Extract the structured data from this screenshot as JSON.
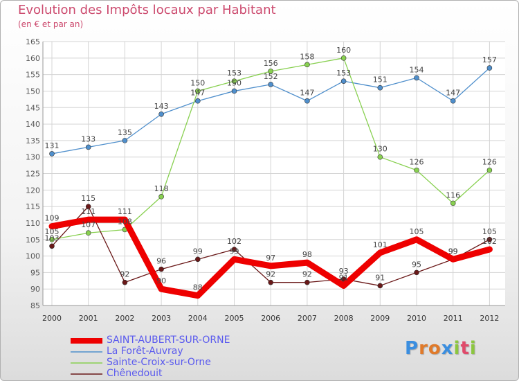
{
  "header": {
    "title": "Evolution des Impôts locaux par Habitant",
    "subtitle": "(en € et par an)"
  },
  "logo": {
    "text": "Proxiti",
    "letters": [
      "P",
      "r",
      "o",
      "x",
      "i",
      "t",
      "i"
    ]
  },
  "colors": {
    "title": "#cc4a6e",
    "legend_text": "#5a5aee",
    "grid": "#d4d4d4",
    "axis": "#999999"
  },
  "chart_data": {
    "type": "line",
    "title": "Evolution des Impôts locaux par Habitant",
    "subtitle": "(en € et par an)",
    "xlabel": "",
    "ylabel": "",
    "ylim": [
      85,
      165
    ],
    "yticks": [
      85,
      90,
      95,
      100,
      105,
      110,
      115,
      120,
      125,
      130,
      135,
      140,
      145,
      150,
      155,
      160,
      165
    ],
    "grid": true,
    "legend_position": "bottom-left",
    "categories": [
      "2000",
      "2001",
      "2002",
      "2003",
      "2004",
      "2005",
      "2006",
      "2007",
      "2008",
      "2009",
      "2010",
      "2011",
      "2012"
    ],
    "series": [
      {
        "name": "SAINT-AUBERT-SUR-ORNE",
        "color": "#ee0000",
        "values": [
          109,
          111,
          111,
          90,
          88,
          99,
          97,
          98,
          91,
          101,
          105,
          99,
          102
        ]
      },
      {
        "name": "La Forêt-Auvray",
        "color": "#4f8fcc",
        "values": [
          131,
          133,
          135,
          143,
          147,
          150,
          152,
          147,
          153,
          151,
          154,
          147,
          157
        ]
      },
      {
        "name": "Sainte-Croix-sur-Orne",
        "color": "#88d050",
        "values": [
          105,
          107,
          108,
          118,
          150,
          153,
          156,
          158,
          160,
          130,
          126,
          116,
          126
        ]
      },
      {
        "name": "Chênedouit",
        "color": "#6a1818",
        "values": [
          103,
          115,
          92,
          96,
          99,
          102,
          92,
          92,
          93,
          91,
          95,
          99,
          105
        ]
      }
    ]
  }
}
